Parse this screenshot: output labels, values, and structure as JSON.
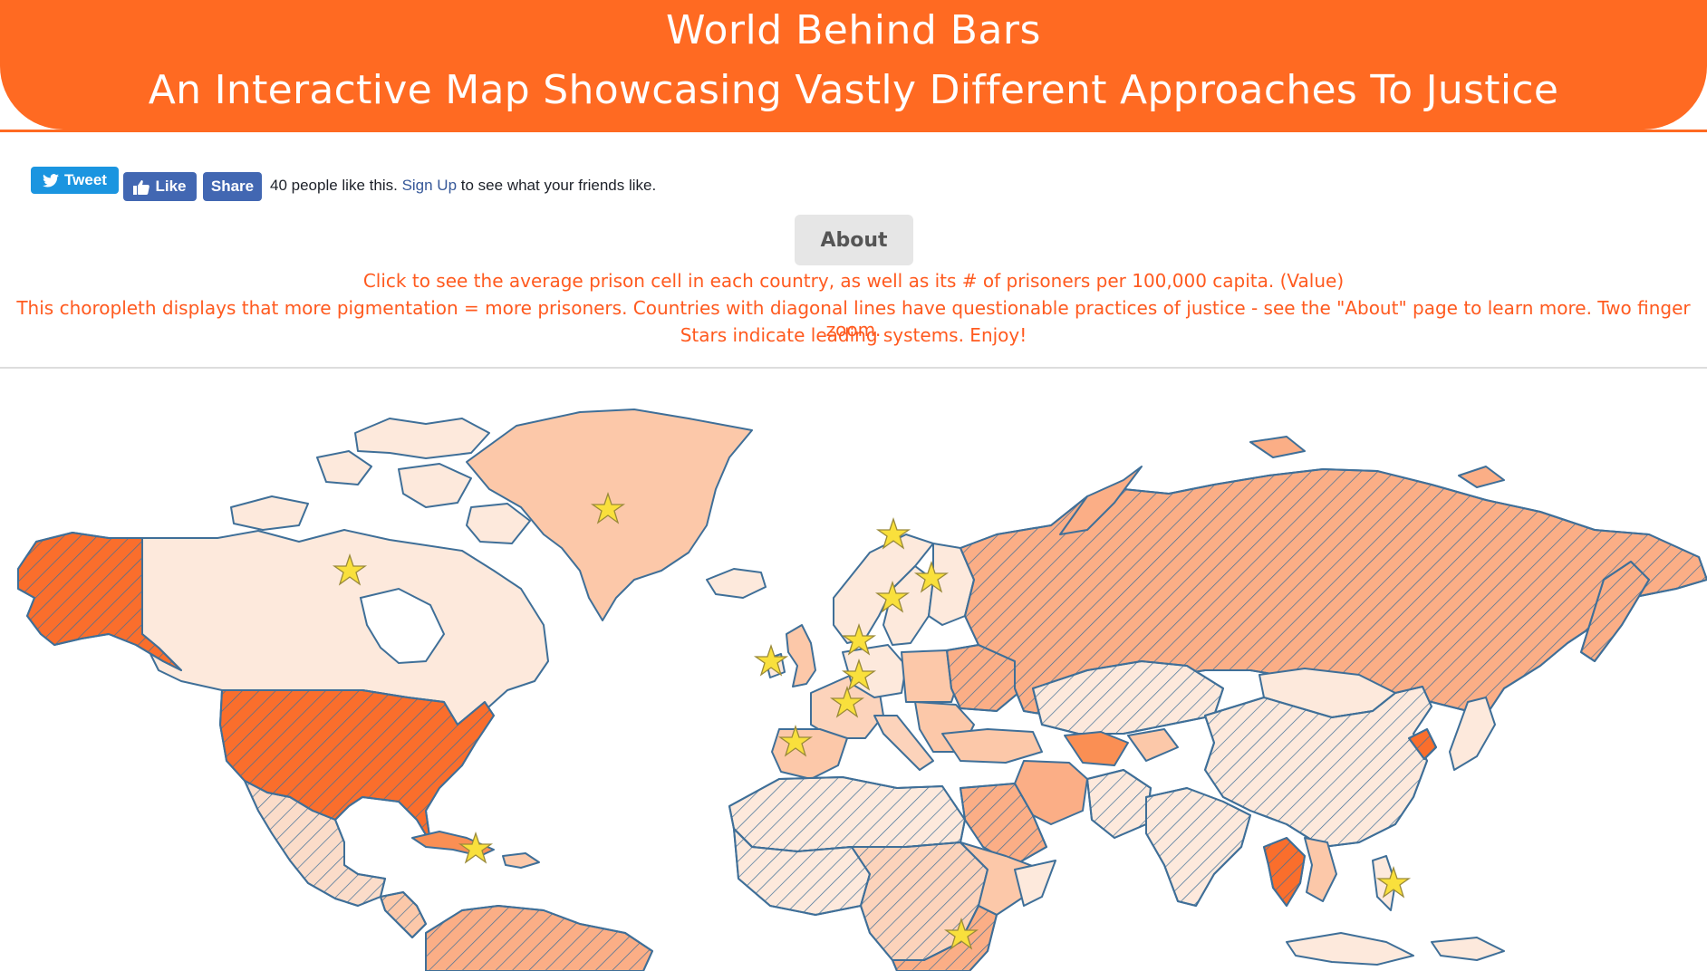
{
  "header": {
    "title": "World Behind Bars",
    "subtitle": "An Interactive Map Showcasing Vastly Different Approaches To Justice"
  },
  "social": {
    "tweet_label": "Tweet",
    "like_label": "Like",
    "share_label": "Share",
    "likes_text_before": "40 people like this.",
    "signup_link": "Sign Up",
    "likes_text_after": "to see what your friends like."
  },
  "about_button": "About",
  "description": {
    "line1": "Click to see the average prison cell in each country, as well as its # of prisoners per 100,000 capita. (Value)",
    "line2": "This choropleth displays that more pigmentation = more prisoners. Countries with diagonal lines have questionable practices of justice - see the \"About\" page to learn more. Two finger zoom.",
    "line3": "Stars indicate leading systems. Enjoy!"
  },
  "colors": {
    "accent": "#ff6a22",
    "very_light": "#fde9dc",
    "light": "#fcc8a9",
    "medium": "#fbae86",
    "strong": "#fa8f54",
    "dark": "#fa6e2c",
    "stroke": "#3f6f98",
    "star": "#f9e03c"
  }
}
